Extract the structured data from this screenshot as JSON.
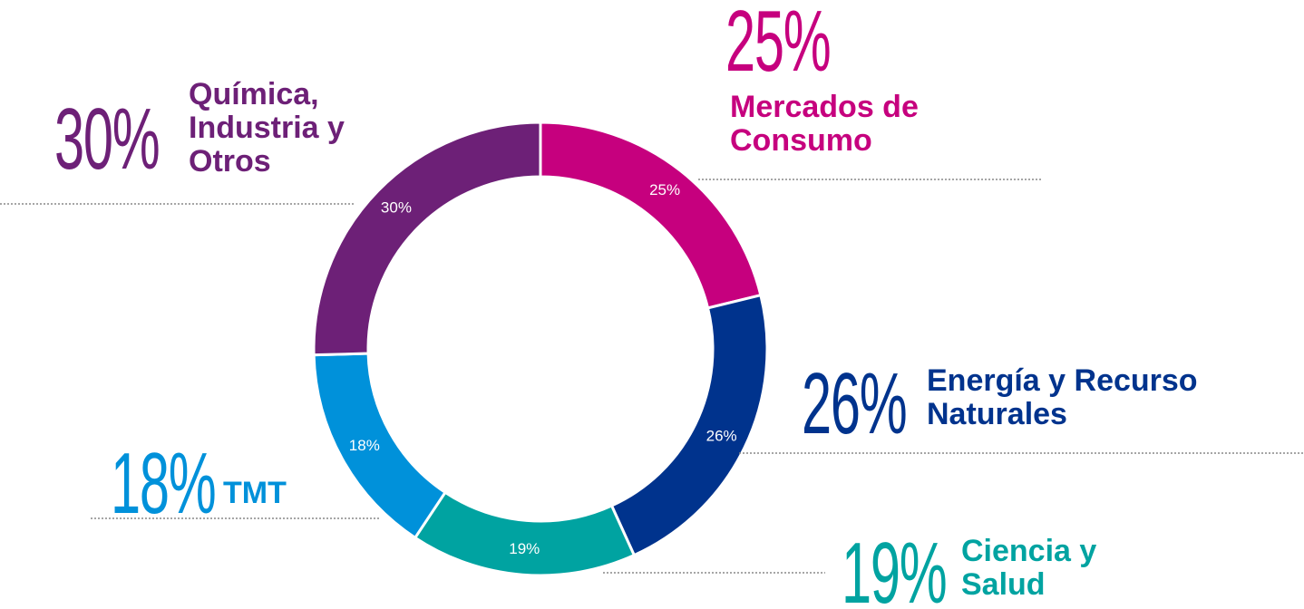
{
  "chart_data": {
    "type": "donut",
    "categories": [
      "Mercados de Consumo",
      "Energía y Recurso Naturales",
      "Ciencia y Salud",
      "TMT",
      "Química, Industria y Otros"
    ],
    "values": [
      25,
      26,
      19,
      18,
      30
    ],
    "value_labels": [
      "25%",
      "26%",
      "19%",
      "18%",
      "30%"
    ],
    "colors": [
      "#c6007e",
      "#00338d",
      "#00a3a1",
      "#0091da",
      "#6d2077"
    ]
  }
}
